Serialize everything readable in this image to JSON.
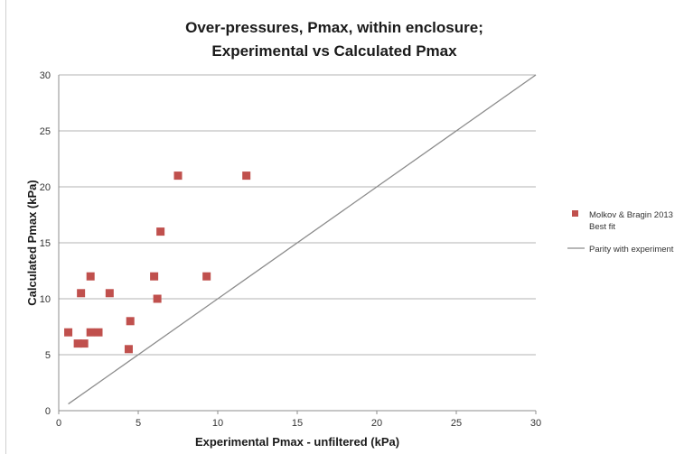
{
  "chart_data": {
    "type": "scatter",
    "title_lines": [
      "Over-pressures, Pmax, within enclosure;",
      "Experimental vs Calculated Pmax"
    ],
    "xlabel": "Experimental Pmax - unfiltered (kPa)",
    "ylabel": "Calculated Pmax (kPa)",
    "xlim": [
      0,
      30
    ],
    "ylim": [
      0,
      30
    ],
    "xticks": [
      0,
      5,
      10,
      15,
      20,
      25,
      30
    ],
    "yticks": [
      0,
      5,
      10,
      15,
      20,
      25,
      30
    ],
    "grid": "horizontal",
    "legend_position": "right",
    "series": [
      {
        "name": "Molkov & Bragin 2013 Best fit",
        "legend_lines": [
          "Molkov & Bragin 2013",
          "Best fit"
        ],
        "kind": "points",
        "color": "#c0504d",
        "points": [
          {
            "x": 0.6,
            "y": 7
          },
          {
            "x": 1.2,
            "y": 6
          },
          {
            "x": 1.6,
            "y": 6
          },
          {
            "x": 1.4,
            "y": 10.5
          },
          {
            "x": 2.0,
            "y": 7
          },
          {
            "x": 2.5,
            "y": 7
          },
          {
            "x": 2.0,
            "y": 12
          },
          {
            "x": 3.2,
            "y": 10.5
          },
          {
            "x": 4.4,
            "y": 5.5
          },
          {
            "x": 4.5,
            "y": 8
          },
          {
            "x": 6.0,
            "y": 12
          },
          {
            "x": 6.2,
            "y": 10
          },
          {
            "x": 6.4,
            "y": 16
          },
          {
            "x": 7.5,
            "y": 21
          },
          {
            "x": 9.3,
            "y": 12
          },
          {
            "x": 11.8,
            "y": 21
          }
        ]
      },
      {
        "name": "Parity with experiment",
        "legend_lines": [
          "Parity with experiment"
        ],
        "kind": "line",
        "color": "#8c8c8c",
        "points": [
          {
            "x": 0.6,
            "y": 0.6
          },
          {
            "x": 30,
            "y": 30
          }
        ]
      }
    ]
  }
}
